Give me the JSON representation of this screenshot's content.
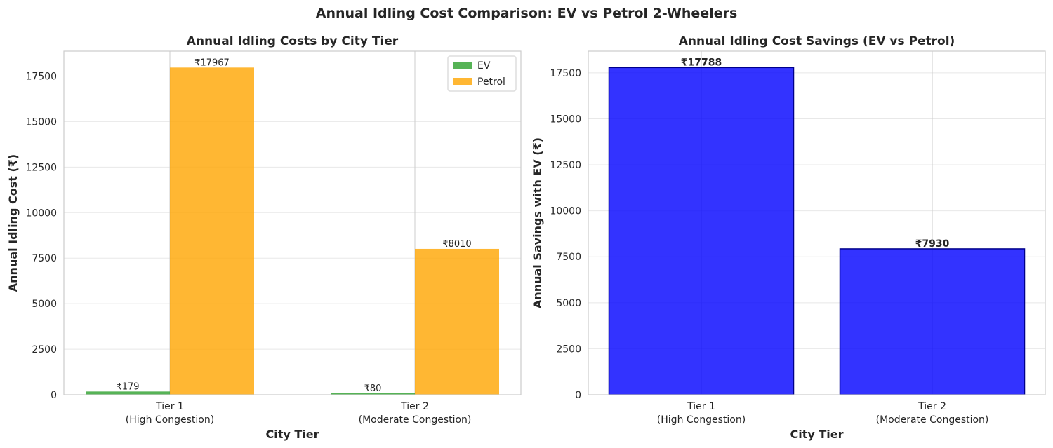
{
  "figure_title": "Annual Idling Cost Comparison: EV vs Petrol 2-Wheelers",
  "colors": {
    "ev": "#2ca02c",
    "petrol": "#ffa500",
    "savings": "#0000ff",
    "savings_edge": "#00008b",
    "grid": "#e8e8e8",
    "axes_edge": "#cccccc",
    "text": "#262626"
  },
  "chart_data": [
    {
      "type": "bar",
      "title": "Annual Idling Costs by City Tier",
      "xlabel": "City Tier",
      "ylabel": "Annual Idling Cost (₹)",
      "categories": [
        [
          "Tier 1",
          "(High Congestion)"
        ],
        [
          "Tier 2",
          "(Moderate Congestion)"
        ]
      ],
      "series": [
        {
          "name": "EV",
          "values": [
            179,
            80
          ],
          "labels": [
            "₹179",
            "₹80"
          ]
        },
        {
          "name": "Petrol",
          "values": [
            17967,
            8010
          ],
          "labels": [
            "₹17967",
            "₹8010"
          ]
        }
      ],
      "yticks": [
        0,
        2500,
        5000,
        7500,
        10000,
        12500,
        15000,
        17500
      ],
      "ylim": [
        0,
        18865
      ],
      "legend": "top-right",
      "grid": true
    },
    {
      "type": "bar",
      "title": "Annual Idling Cost Savings (EV vs Petrol)",
      "xlabel": "City Tier",
      "ylabel": "Annual Savings with EV (₹)",
      "categories": [
        [
          "Tier 1",
          "(High Congestion)"
        ],
        [
          "Tier 2",
          "(Moderate Congestion)"
        ]
      ],
      "series": [
        {
          "values": [
            17788,
            7930
          ],
          "labels": [
            "₹17788",
            "₹7930"
          ]
        }
      ],
      "yticks": [
        0,
        2500,
        5000,
        7500,
        10000,
        12500,
        15000,
        17500
      ],
      "ylim": [
        0,
        18677
      ],
      "grid": true
    }
  ]
}
